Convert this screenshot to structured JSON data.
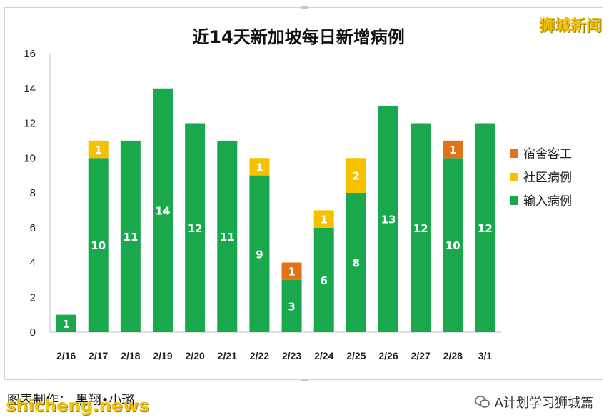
{
  "brand_top": "狮城新闻",
  "credit": "图表制作： 黑翔•小璐",
  "brand_bottom_left": "shicheng.news",
  "brand_bottom_right": "A计划学习狮城篇",
  "chart_data": {
    "type": "bar",
    "stacked": true,
    "title": "近14天新加坡每日新增病例",
    "categories": [
      "2/16",
      "2/17",
      "2/18",
      "2/19",
      "2/20",
      "2/21",
      "2/22",
      "2/23",
      "2/24",
      "2/25",
      "2/26",
      "2/27",
      "2/28",
      "3/1"
    ],
    "series": [
      {
        "name": "输入病例",
        "color": "#1aa84d",
        "values": [
          1,
          10,
          11,
          14,
          12,
          11,
          9,
          3,
          6,
          8,
          13,
          12,
          10,
          12
        ]
      },
      {
        "name": "社区病例",
        "color": "#f5c000",
        "values": [
          0,
          1,
          0,
          0,
          0,
          0,
          1,
          0,
          1,
          2,
          0,
          0,
          0,
          0
        ]
      },
      {
        "name": "宿舍客工",
        "color": "#e07318",
        "values": [
          0,
          0,
          0,
          0,
          0,
          0,
          0,
          1,
          0,
          0,
          0,
          0,
          1,
          0
        ]
      }
    ],
    "legend_order": [
      "宿舍客工",
      "社区病例",
      "输入病例"
    ],
    "legend_position": "right",
    "ylim": [
      0,
      16
    ],
    "yticks": [
      0,
      2,
      4,
      6,
      8,
      10,
      12,
      14,
      16
    ],
    "grid": false
  }
}
